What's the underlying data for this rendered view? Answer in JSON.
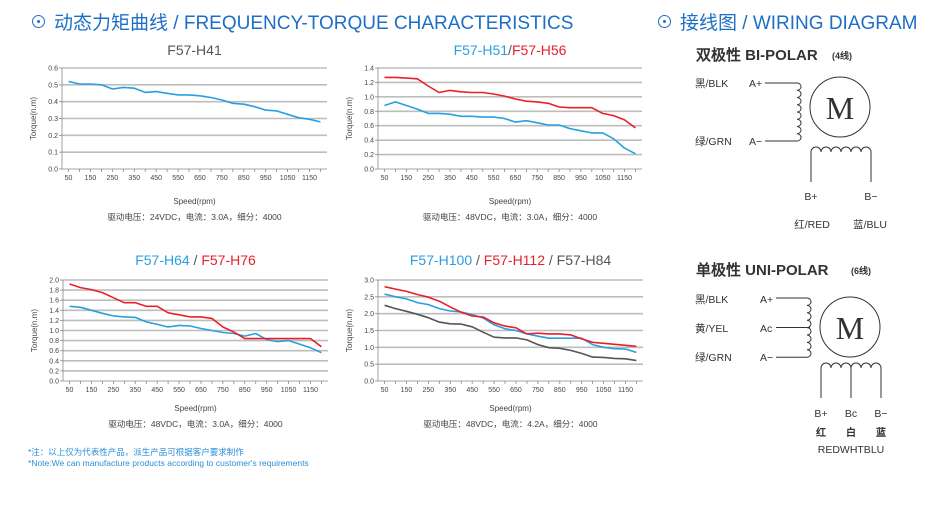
{
  "headers": {
    "left": "动态力矩曲线 / FREQUENCY-TORQUE CHARACTERISTICS",
    "right": "接线图 / WIRING DIAGRAM"
  },
  "colors": {
    "blue": "#2a9ee0",
    "red": "#e8202a",
    "gray": "#555555",
    "header": "#1d6fc6"
  },
  "notes": {
    "cn": "*注：以上仅为代表性产品，派生产品可根据客户要求制作",
    "en": "*Note:We can manufacture products according to customer's requirements"
  },
  "chart_data": [
    {
      "type": "line",
      "title_parts": [
        {
          "text": "F57-H41",
          "color": "gray"
        }
      ],
      "xlabel": "Speed(rpm)",
      "ylabel": "Torque(n.m)",
      "caption": "驱动电压：24VDC，电流：3.0A，细分：4000",
      "xlim": [
        20,
        1230
      ],
      "ylim": [
        0,
        0.6
      ],
      "xticks": [
        "50",
        "150",
        "250",
        "350",
        "450",
        "550",
        "650",
        "750",
        "850",
        "950",
        "1050",
        "1150"
      ],
      "yticks": [
        "0.0",
        "0.1",
        "0.2",
        "0.3",
        "0.4",
        "0.5",
        "0.6"
      ],
      "grid": true,
      "x": [
        50,
        100,
        150,
        200,
        250,
        300,
        350,
        400,
        450,
        500,
        550,
        600,
        650,
        700,
        750,
        800,
        850,
        900,
        950,
        1000,
        1050,
        1100,
        1150,
        1200
      ],
      "series": [
        {
          "name": "F57-H41",
          "color": "blue",
          "values": [
            0.52,
            0.505,
            0.505,
            0.5,
            0.475,
            0.485,
            0.48,
            0.455,
            0.46,
            0.45,
            0.44,
            0.44,
            0.435,
            0.425,
            0.41,
            0.39,
            0.385,
            0.37,
            0.35,
            0.345,
            0.325,
            0.305,
            0.295,
            0.28
          ]
        }
      ]
    },
    {
      "type": "line",
      "title_parts": [
        {
          "text": "F57-H51",
          "color": "blue"
        },
        {
          "text": "/",
          "color": "gray"
        },
        {
          "text": "F57-H56",
          "color": "red"
        }
      ],
      "xlabel": "Speed(rpm)",
      "ylabel": "Torque(n.m)",
      "caption": "驱动电压：48VDC，电流：3.0A，细分：4000",
      "xlim": [
        20,
        1230
      ],
      "ylim": [
        0,
        1.4
      ],
      "xticks": [
        "50",
        "150",
        "250",
        "350",
        "450",
        "550",
        "650",
        "750",
        "850",
        "950",
        "1050",
        "1150"
      ],
      "yticks": [
        "0.0",
        "0.2",
        "0.4",
        "0.6",
        "0.8",
        "1.0",
        "1.2",
        "1.4"
      ],
      "grid": true,
      "x": [
        50,
        100,
        150,
        200,
        250,
        300,
        350,
        400,
        450,
        500,
        550,
        600,
        650,
        700,
        750,
        800,
        850,
        900,
        950,
        1000,
        1050,
        1100,
        1150,
        1200
      ],
      "series": [
        {
          "name": "F57-H51",
          "color": "blue",
          "values": [
            0.88,
            0.93,
            0.88,
            0.83,
            0.77,
            0.77,
            0.76,
            0.73,
            0.73,
            0.72,
            0.72,
            0.7,
            0.65,
            0.67,
            0.64,
            0.61,
            0.61,
            0.56,
            0.53,
            0.5,
            0.5,
            0.42,
            0.29,
            0.21
          ]
        },
        {
          "name": "F57-H56",
          "color": "red",
          "values": [
            1.27,
            1.27,
            1.26,
            1.25,
            1.15,
            1.06,
            1.09,
            1.07,
            1.06,
            1.06,
            1.04,
            1.01,
            0.97,
            0.94,
            0.93,
            0.91,
            0.86,
            0.85,
            0.85,
            0.85,
            0.77,
            0.74,
            0.68,
            0.57
          ]
        }
      ]
    },
    {
      "type": "line",
      "title_parts": [
        {
          "text": "F57-H64",
          "color": "blue"
        },
        {
          "text": " / ",
          "color": "gray"
        },
        {
          "text": "F57-H76",
          "color": "red"
        }
      ],
      "xlabel": "Speed(rpm)",
      "ylabel": "Torque(n.m)",
      "caption": "驱动电压：48VDC，电流：3.0A，细分：4000",
      "xlim": [
        20,
        1230
      ],
      "ylim": [
        0,
        2.0
      ],
      "xticks": [
        "50",
        "150",
        "250",
        "350",
        "450",
        "550",
        "650",
        "750",
        "850",
        "950",
        "1050",
        "1150"
      ],
      "yticks": [
        "0.0",
        "0.2",
        "0.4",
        "0.6",
        "0.8",
        "1.0",
        "1.2",
        "1.4",
        "1.6",
        "1.8",
        "2.0"
      ],
      "grid": true,
      "x": [
        50,
        100,
        150,
        200,
        250,
        300,
        350,
        400,
        450,
        500,
        550,
        600,
        650,
        700,
        750,
        800,
        850,
        900,
        950,
        1000,
        1050,
        1100,
        1150,
        1200
      ],
      "series": [
        {
          "name": "F57-H64",
          "color": "blue",
          "values": [
            1.48,
            1.46,
            1.4,
            1.34,
            1.29,
            1.27,
            1.26,
            1.17,
            1.12,
            1.07,
            1.1,
            1.09,
            1.04,
            1.0,
            0.96,
            0.94,
            0.89,
            0.94,
            0.82,
            0.78,
            0.8,
            0.73,
            0.66,
            0.56
          ]
        },
        {
          "name": "F57-H76",
          "color": "red",
          "values": [
            1.92,
            1.85,
            1.81,
            1.75,
            1.65,
            1.55,
            1.55,
            1.48,
            1.48,
            1.35,
            1.31,
            1.27,
            1.27,
            1.24,
            1.07,
            0.97,
            0.84,
            0.84,
            0.84,
            0.84,
            0.84,
            0.84,
            0.84,
            0.68
          ]
        }
      ]
    },
    {
      "type": "line",
      "title_parts": [
        {
          "text": "F57-H100",
          "color": "blue"
        },
        {
          "text": " / ",
          "color": "gray"
        },
        {
          "text": "F57-H112",
          "color": "red"
        },
        {
          "text": " / ",
          "color": "gray"
        },
        {
          "text": "F57-H84",
          "color": "gray"
        }
      ],
      "xlabel": "Speed(rpm)",
      "ylabel": "Torque(n.m)",
      "caption": "驱动电压：48VDC，电流：4.2A，细分：4000",
      "xlim": [
        20,
        1230
      ],
      "ylim": [
        0,
        3.0
      ],
      "xticks": [
        "50",
        "150",
        "250",
        "350",
        "450",
        "550",
        "650",
        "750",
        "850",
        "950",
        "1050",
        "1150"
      ],
      "yticks": [
        "0.0",
        "0.5",
        "1.0",
        "1.5",
        "2.0",
        "2.5",
        "3.0"
      ],
      "grid": true,
      "x": [
        50,
        100,
        150,
        200,
        250,
        300,
        350,
        400,
        450,
        500,
        550,
        600,
        650,
        700,
        750,
        800,
        850,
        900,
        950,
        1000,
        1050,
        1100,
        1150,
        1200
      ],
      "series": [
        {
          "name": "F57-H100",
          "color": "blue",
          "values": [
            2.58,
            2.5,
            2.44,
            2.33,
            2.27,
            2.15,
            2.08,
            2.05,
            1.97,
            1.87,
            1.67,
            1.55,
            1.5,
            1.4,
            1.33,
            1.27,
            1.27,
            1.27,
            1.27,
            1.08,
            1.0,
            0.96,
            0.95,
            0.85
          ]
        },
        {
          "name": "F57-H112",
          "color": "red",
          "values": [
            2.8,
            2.73,
            2.66,
            2.57,
            2.49,
            2.37,
            2.2,
            2.04,
            1.93,
            1.9,
            1.73,
            1.63,
            1.58,
            1.4,
            1.42,
            1.4,
            1.4,
            1.37,
            1.25,
            1.15,
            1.12,
            1.09,
            1.06,
            1.03
          ]
        },
        {
          "name": "F57-H84",
          "color": "gray",
          "values": [
            2.25,
            2.15,
            2.07,
            1.98,
            1.88,
            1.75,
            1.7,
            1.69,
            1.61,
            1.45,
            1.3,
            1.28,
            1.28,
            1.22,
            1.08,
            0.99,
            0.97,
            0.91,
            0.82,
            0.71,
            0.7,
            0.67,
            0.66,
            0.61
          ]
        }
      ]
    }
  ],
  "wiring": {
    "bipolar": {
      "title": "双极性 BI-POLAR",
      "title_note": "(4线)",
      "motor": "M",
      "a_plus": {
        "wire": "黑/BLK",
        "pin": "A+"
      },
      "a_minus": {
        "wire": "绿/GRN",
        "pin": "A−"
      },
      "b_plus": {
        "pin": "B+",
        "wire": "红/RED"
      },
      "b_minus": {
        "pin": "B−",
        "wire": "蓝/BLU"
      }
    },
    "unipolar": {
      "title": "单极性 UNI-POLAR",
      "title_note": "(6线)",
      "motor": "M",
      "a_plus": {
        "wire": "黑/BLK",
        "pin": "A+"
      },
      "a_center": {
        "wire": "黄/YEL",
        "pin": "Ac"
      },
      "a_minus": {
        "wire": "绿/GRN",
        "pin": "A−"
      },
      "b_plus": {
        "pin": "B+",
        "color_cn": "红"
      },
      "b_center": {
        "pin": "Bc",
        "color_cn": "白"
      },
      "b_minus": {
        "pin": "B−",
        "color_cn": "蓝"
      },
      "b_colors_en": "REDWHTBLU"
    }
  }
}
